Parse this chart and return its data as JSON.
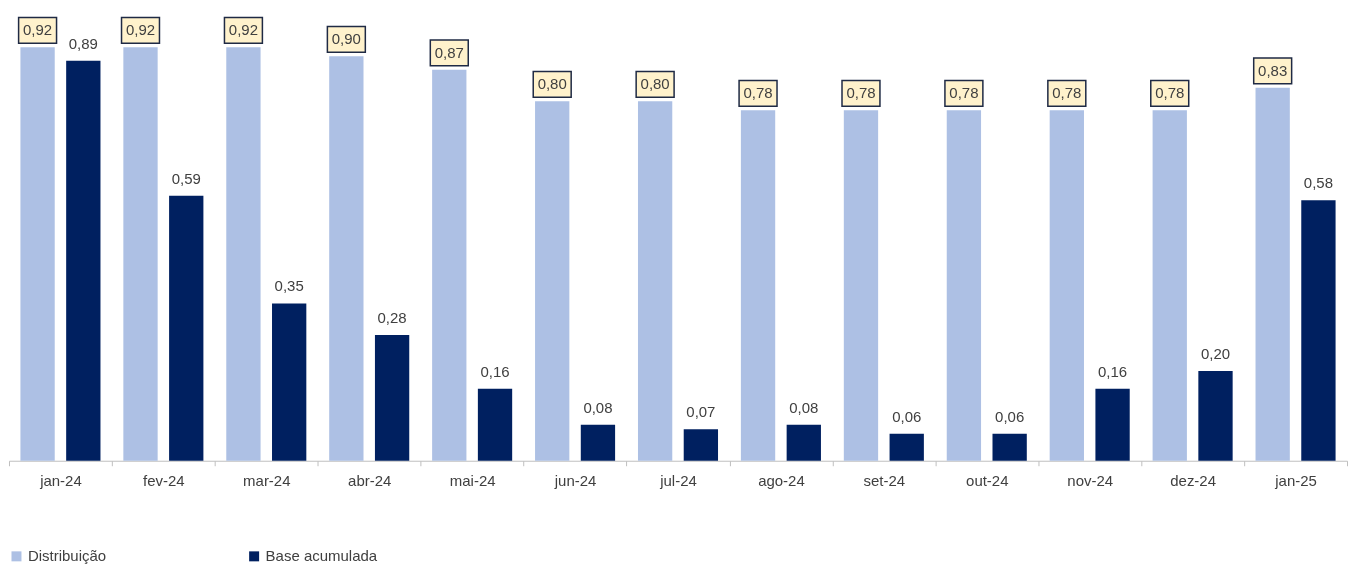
{
  "chart_data": {
    "type": "bar",
    "categories": [
      "jan-24",
      "fev-24",
      "mar-24",
      "abr-24",
      "mai-24",
      "jun-24",
      "jul-24",
      "ago-24",
      "set-24",
      "out-24",
      "nov-24",
      "dez-24",
      "jan-25"
    ],
    "series": [
      {
        "name": "Distribuição",
        "color": "#adc0e4",
        "values": [
          0.92,
          0.92,
          0.92,
          0.9,
          0.87,
          0.8,
          0.8,
          0.78,
          0.78,
          0.78,
          0.78,
          0.78,
          0.83
        ],
        "value_labels": [
          "0,92",
          "0,92",
          "0,92",
          "0,90",
          "0,87",
          "0,80",
          "0,80",
          "0,78",
          "0,78",
          "0,78",
          "0,78",
          "0,78",
          "0,83"
        ]
      },
      {
        "name": "Base acumulada",
        "color": "#002060",
        "values": [
          0.89,
          0.59,
          0.35,
          0.28,
          0.16,
          0.08,
          0.07,
          0.08,
          0.06,
          0.06,
          0.16,
          0.2,
          0.58
        ],
        "value_labels": [
          "0,89",
          "0,59",
          "0,35",
          "0,28",
          "0,16",
          "0,08",
          "0,07",
          "0,08",
          "0,06",
          "0,06",
          "0,16",
          "0,20",
          "0,58"
        ]
      }
    ],
    "legend": "bottom"
  }
}
